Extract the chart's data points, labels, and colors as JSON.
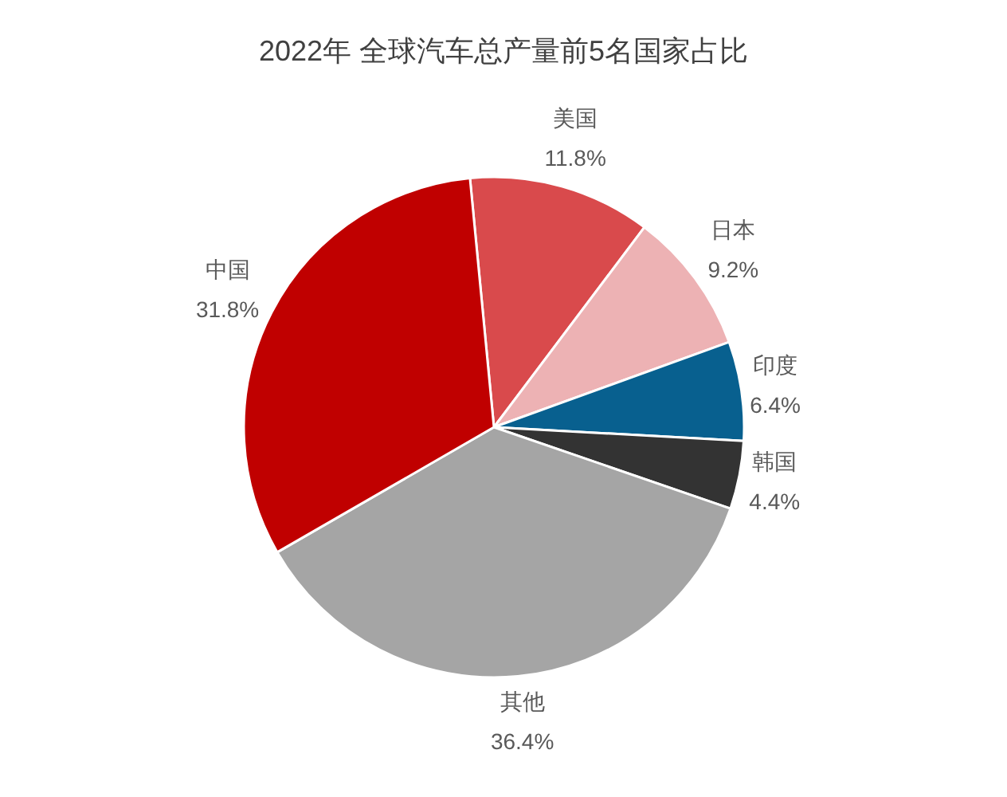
{
  "chart_data": {
    "type": "pie",
    "title": "2022年 全球汽车总产量前5名国家占比",
    "categories": [
      "美国",
      "日本",
      "印度",
      "韩国",
      "其他",
      "中国"
    ],
    "values": [
      11.8,
      9.2,
      6.4,
      4.4,
      36.4,
      31.8
    ],
    "colors": [
      "#d94a4c",
      "#edb2b4",
      "#08608f",
      "#333333",
      "#a5a5a5",
      "#c00000"
    ],
    "value_labels": [
      "11.8%",
      "9.2%",
      "6.4%",
      "4.4%",
      "36.4%",
      "31.8%"
    ]
  }
}
